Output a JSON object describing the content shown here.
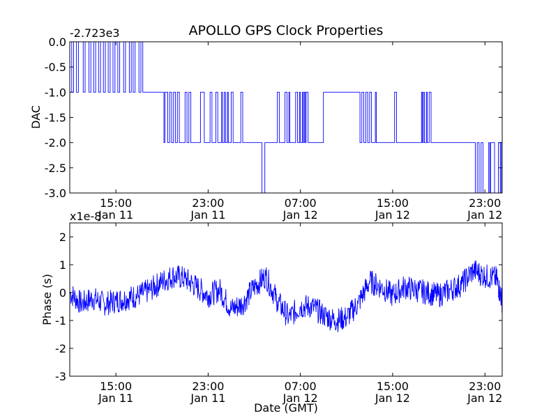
{
  "chart_data": {
    "type": "line",
    "title": "APOLLO GPS Clock Properties",
    "xlabel": "Date (GMT)",
    "x_range": [
      "2010-01-11T11:00",
      "2010-01-13T00:30"
    ],
    "x_ticks": [
      {
        "x": "2010-01-11T15:00",
        "time": "15:00",
        "date": "Jan 11"
      },
      {
        "x": "2010-01-11T23:00",
        "time": "23:00",
        "date": "Jan 11"
      },
      {
        "x": "2010-01-12T07:00",
        "time": "07:00",
        "date": "Jan 12"
      },
      {
        "x": "2010-01-12T15:00",
        "time": "15:00",
        "date": "Jan 12"
      },
      {
        "x": "2010-01-12T23:00",
        "time": "23:00",
        "date": "Jan 12"
      }
    ],
    "panels": [
      {
        "ylabel": "DAC",
        "offset_text": "-2.723e3",
        "ylim": [
          -3.0,
          0.0
        ],
        "yticks": [
          0.0,
          -0.5,
          -1.0,
          -1.5,
          -2.0,
          -2.5,
          -3.0
        ],
        "ytick_labels": [
          "0.0",
          "-0.5",
          "-1.0",
          "-1.5",
          "-2.0",
          "-2.5",
          "-3.0"
        ],
        "series": [
          {
            "color": "#0000ff",
            "step_data": [
              [
                "2010-01-11T11:00",
                0
              ],
              [
                "2010-01-11T11:10",
                -1
              ],
              [
                "2010-01-11T11:20",
                0
              ],
              [
                "2010-01-11T11:35",
                -1
              ],
              [
                "2010-01-11T11:45",
                0
              ],
              [
                "2010-01-11T12:10",
                -1
              ],
              [
                "2010-01-11T12:20",
                0
              ],
              [
                "2010-01-11T12:40",
                -1
              ],
              [
                "2010-01-11T12:50",
                0
              ],
              [
                "2010-01-11T13:05",
                -1
              ],
              [
                "2010-01-11T13:15",
                0
              ],
              [
                "2010-01-11T13:30",
                -1
              ],
              [
                "2010-01-11T13:40",
                0
              ],
              [
                "2010-01-11T13:55",
                -1
              ],
              [
                "2010-01-11T14:05",
                0
              ],
              [
                "2010-01-11T14:20",
                -1
              ],
              [
                "2010-01-11T14:30",
                0
              ],
              [
                "2010-01-11T14:45",
                -1
              ],
              [
                "2010-01-11T14:55",
                0
              ],
              [
                "2010-01-11T15:10",
                -1
              ],
              [
                "2010-01-11T15:20",
                0
              ],
              [
                "2010-01-11T15:40",
                -1
              ],
              [
                "2010-01-11T15:50",
                0
              ],
              [
                "2010-01-11T16:10",
                -1
              ],
              [
                "2010-01-11T16:20",
                0
              ],
              [
                "2010-01-11T16:30",
                -1
              ],
              [
                "2010-01-11T16:40",
                0
              ],
              [
                "2010-01-11T17:00",
                -1
              ],
              [
                "2010-01-11T17:10",
                0
              ],
              [
                "2010-01-11T17:20",
                -1
              ],
              [
                "2010-01-11T19:10",
                -2
              ],
              [
                "2010-01-11T19:15",
                -1
              ],
              [
                "2010-01-11T19:30",
                -2
              ],
              [
                "2010-01-11T19:40",
                -1
              ],
              [
                "2010-01-11T19:50",
                -2
              ],
              [
                "2010-01-11T20:00",
                -1
              ],
              [
                "2010-01-11T20:10",
                -2
              ],
              [
                "2010-01-11T20:20",
                -1
              ],
              [
                "2010-01-11T20:30",
                -2
              ],
              [
                "2010-01-11T21:00",
                -1
              ],
              [
                "2010-01-11T21:10",
                -2
              ],
              [
                "2010-01-11T21:20",
                -1
              ],
              [
                "2010-01-11T21:30",
                -2
              ],
              [
                "2010-01-11T22:20",
                -1
              ],
              [
                "2010-01-11T22:40",
                -2
              ],
              [
                "2010-01-11T23:10",
                -1
              ],
              [
                "2010-01-11T23:20",
                -2
              ],
              [
                "2010-01-11T23:40",
                -1
              ],
              [
                "2010-01-11T23:50",
                -2
              ],
              [
                "2010-01-12T00:10",
                -1
              ],
              [
                "2010-01-12T00:15",
                -2
              ],
              [
                "2010-01-12T00:25",
                -1
              ],
              [
                "2010-01-12T00:30",
                -2
              ],
              [
                "2010-01-12T00:40",
                -1
              ],
              [
                "2010-01-12T00:45",
                -2
              ],
              [
                "2010-01-12T01:00",
                -1
              ],
              [
                "2010-01-12T01:10",
                -2
              ],
              [
                "2010-01-12T01:50",
                -1
              ],
              [
                "2010-01-12T02:00",
                -2
              ],
              [
                "2010-01-12T03:30",
                -2
              ],
              [
                "2010-01-12T03:40",
                -3
              ],
              [
                "2010-01-12T03:55",
                -2
              ],
              [
                "2010-01-12T05:00",
                -1
              ],
              [
                "2010-01-12T05:10",
                -2
              ],
              [
                "2010-01-12T05:40",
                -1
              ],
              [
                "2010-01-12T05:50",
                -2
              ],
              [
                "2010-01-12T06:00",
                -1
              ],
              [
                "2010-01-12T06:05",
                -2
              ],
              [
                "2010-01-12T06:35",
                -1
              ],
              [
                "2010-01-12T06:45",
                -2
              ],
              [
                "2010-01-12T06:55",
                -1
              ],
              [
                "2010-01-12T07:00",
                -2
              ],
              [
                "2010-01-12T07:10",
                -1
              ],
              [
                "2010-01-12T07:15",
                -2
              ],
              [
                "2010-01-12T07:20",
                -1
              ],
              [
                "2010-01-12T07:25",
                -2
              ],
              [
                "2010-01-12T07:30",
                -1
              ],
              [
                "2010-01-12T07:40",
                -2
              ],
              [
                "2010-01-12T09:00",
                -1
              ],
              [
                "2010-01-12T12:10",
                -2
              ],
              [
                "2010-01-12T12:20",
                -1
              ],
              [
                "2010-01-12T12:30",
                -2
              ],
              [
                "2010-01-12T12:40",
                -1
              ],
              [
                "2010-01-12T12:50",
                -2
              ],
              [
                "2010-01-12T13:00",
                -1
              ],
              [
                "2010-01-12T13:10",
                -2
              ],
              [
                "2010-01-12T13:30",
                -1
              ],
              [
                "2010-01-12T13:35",
                -2
              ],
              [
                "2010-01-12T15:10",
                -1
              ],
              [
                "2010-01-12T15:20",
                -2
              ],
              [
                "2010-01-12T17:30",
                -1
              ],
              [
                "2010-01-12T17:35",
                -2
              ],
              [
                "2010-01-12T17:40",
                -1
              ],
              [
                "2010-01-12T17:45",
                -2
              ],
              [
                "2010-01-12T17:55",
                -1
              ],
              [
                "2010-01-12T18:00",
                -2
              ],
              [
                "2010-01-12T18:10",
                -1
              ],
              [
                "2010-01-12T18:20",
                -2
              ],
              [
                "2010-01-12T22:10",
                -3
              ],
              [
                "2010-01-12T22:20",
                -2
              ],
              [
                "2010-01-12T22:30",
                -3
              ],
              [
                "2010-01-12T22:40",
                -2
              ],
              [
                "2010-01-12T22:50",
                -3
              ],
              [
                "2010-01-12T23:20",
                -2
              ],
              [
                "2010-01-12T23:25",
                -3
              ],
              [
                "2010-01-12T23:30",
                -2
              ],
              [
                "2010-01-12T23:50",
                -3
              ],
              [
                "2010-01-13T00:10",
                -2
              ],
              [
                "2010-01-13T00:20",
                -3
              ],
              [
                "2010-01-13T00:25",
                -2
              ],
              [
                "2010-01-13T00:30",
                -2
              ]
            ]
          }
        ]
      },
      {
        "ylabel": "Phase (s)",
        "offset_text": "x1e-8",
        "ylim": [
          -3,
          2.5
        ],
        "yticks": [
          2,
          1,
          0,
          -1,
          -2,
          -3
        ],
        "ytick_labels": [
          "2",
          "1",
          "0",
          "-1",
          "-2",
          "-3"
        ],
        "series": [
          {
            "color": "#0000ff",
            "data": [
              [
                "2010-01-11T11:00",
                0.0
              ],
              [
                "2010-01-11T12:00",
                -0.4
              ],
              [
                "2010-01-11T13:00",
                -0.2
              ],
              [
                "2010-01-11T14:00",
                -0.4
              ],
              [
                "2010-01-11T15:00",
                -0.3
              ],
              [
                "2010-01-11T16:00",
                -0.2
              ],
              [
                "2010-01-11T17:00",
                -0.1
              ],
              [
                "2010-01-11T18:00",
                0.1
              ],
              [
                "2010-01-11T19:00",
                0.4
              ],
              [
                "2010-01-11T20:00",
                0.6
              ],
              [
                "2010-01-11T21:00",
                0.5
              ],
              [
                "2010-01-11T22:00",
                0.2
              ],
              [
                "2010-01-11T23:00",
                -0.1
              ],
              [
                "2010-01-12T00:00",
                0.1
              ],
              [
                "2010-01-12T01:00",
                -0.6
              ],
              [
                "2010-01-12T02:00",
                -0.4
              ],
              [
                "2010-01-12T03:00",
                0.2
              ],
              [
                "2010-01-12T04:00",
                0.6
              ],
              [
                "2010-01-12T05:00",
                -0.3
              ],
              [
                "2010-01-12T06:00",
                -0.9
              ],
              [
                "2010-01-12T07:00",
                -0.5
              ],
              [
                "2010-01-12T08:00",
                -0.5
              ],
              [
                "2010-01-12T09:00",
                -0.8
              ],
              [
                "2010-01-12T10:00",
                -1.0
              ],
              [
                "2010-01-12T11:00",
                -0.9
              ],
              [
                "2010-01-12T12:00",
                -0.4
              ],
              [
                "2010-01-12T13:00",
                0.4
              ],
              [
                "2010-01-12T14:00",
                0.2
              ],
              [
                "2010-01-12T15:00",
                -0.1
              ],
              [
                "2010-01-12T16:00",
                0.2
              ],
              [
                "2010-01-12T17:00",
                0.1
              ],
              [
                "2010-01-12T18:00",
                0.0
              ],
              [
                "2010-01-12T19:00",
                -0.1
              ],
              [
                "2010-01-12T20:00",
                0.1
              ],
              [
                "2010-01-12T21:00",
                0.3
              ],
              [
                "2010-01-12T22:00",
                0.8
              ],
              [
                "2010-01-12T23:00",
                0.6
              ],
              [
                "2010-01-13T00:00",
                0.5
              ],
              [
                "2010-01-13T00:30",
                -0.3
              ]
            ]
          }
        ]
      }
    ]
  }
}
